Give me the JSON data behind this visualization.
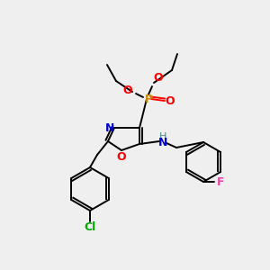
{
  "bg_color": "#efefef",
  "bond_color": "#000000",
  "colors": {
    "N": "#0000cc",
    "O": "#ff0000",
    "P": "#cc8800",
    "Cl": "#00aa00",
    "F": "#ee44aa",
    "H": "#448888",
    "C": "#000000"
  },
  "figsize": [
    3.0,
    3.0
  ],
  "dpi": 100
}
